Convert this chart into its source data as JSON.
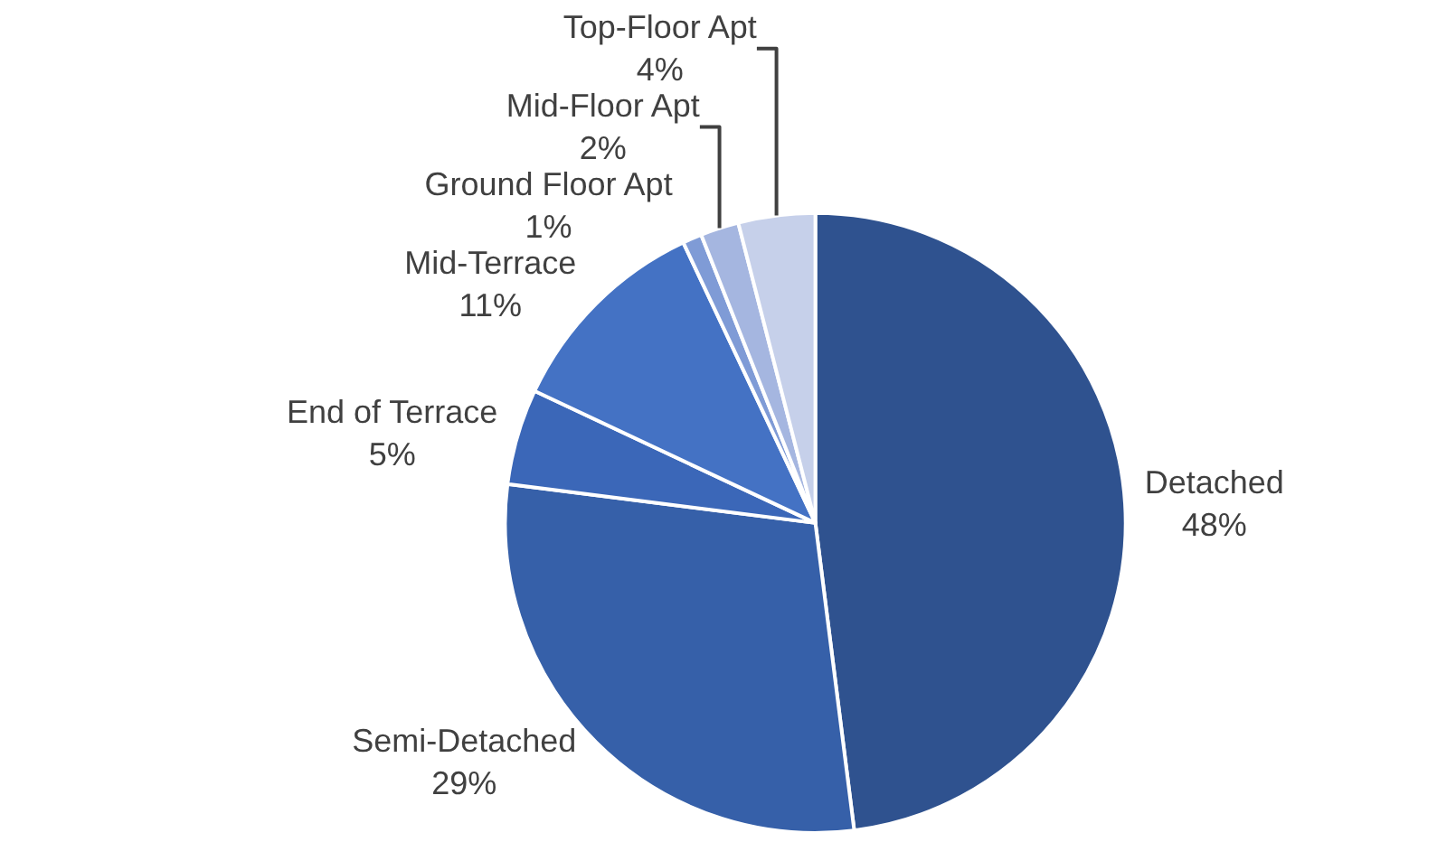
{
  "chart_data": {
    "type": "pie",
    "categories": [
      "Detached",
      "Semi-Detached",
      "End of Terrace",
      "Mid-Terrace",
      "Ground Floor Apt",
      "Mid-Floor Apt",
      "Top-Floor Apt"
    ],
    "values": [
      48,
      29,
      5,
      11,
      1,
      2,
      4
    ],
    "value_labels": [
      "48%",
      "29%",
      "5%",
      "11%",
      "1%",
      "2%",
      "4%"
    ],
    "colors": [
      "#2f528f",
      "#3660a9",
      "#3b67b8",
      "#4472c4",
      "#7f9bd6",
      "#a5b6e0",
      "#c6d0ea"
    ]
  }
}
